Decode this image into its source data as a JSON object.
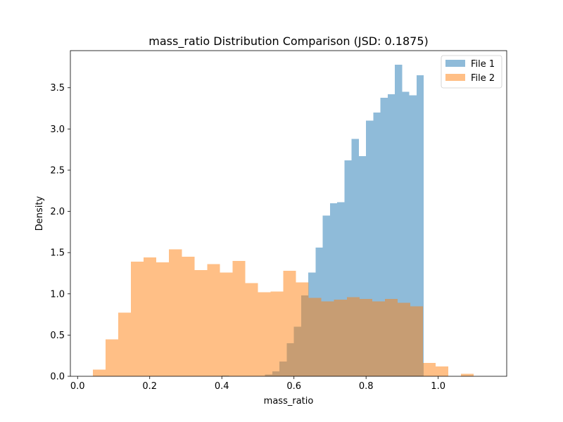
{
  "chart_data": {
    "type": "histogram",
    "title": "mass_ratio Distribution Comparison (JSD: 0.1875)",
    "xlabel": "mass_ratio",
    "ylabel": "Density",
    "xlim": [
      -0.02,
      1.19
    ],
    "ylim": [
      0,
      3.95
    ],
    "xticks": [
      "0.0",
      "0.2",
      "0.4",
      "0.6",
      "0.8",
      "1.0"
    ],
    "xtick_values": [
      0.0,
      0.2,
      0.4,
      0.6,
      0.8,
      1.0
    ],
    "yticks": [
      "0.0",
      "0.5",
      "1.0",
      "1.5",
      "2.0",
      "2.5",
      "3.0",
      "3.5"
    ],
    "ytick_values": [
      0.0,
      0.5,
      1.0,
      1.5,
      2.0,
      2.5,
      3.0,
      3.5
    ],
    "legend_position": "top-right",
    "series": [
      {
        "name": "File 1",
        "color": "#1f77b4",
        "alpha": 0.5,
        "bin_start": 0.4,
        "bin_width": 0.02,
        "values": [
          0.01,
          0.0,
          0.0,
          0.0,
          0.0,
          0.0,
          0.02,
          0.06,
          0.18,
          0.4,
          0.6,
          0.98,
          1.26,
          1.56,
          1.95,
          2.1,
          2.11,
          2.62,
          2.88,
          2.67,
          3.1,
          3.2,
          3.38,
          3.42,
          3.78,
          3.45,
          3.41,
          3.65
        ]
      },
      {
        "name": "File 2",
        "color": "#ff7f0e",
        "alpha": 0.5,
        "bin_start": 0.0425,
        "bin_width": 0.0352,
        "values": [
          0.08,
          0.45,
          0.77,
          1.39,
          1.44,
          1.38,
          1.54,
          1.45,
          1.29,
          1.36,
          1.26,
          1.4,
          1.13,
          1.02,
          1.03,
          1.28,
          1.14,
          0.95,
          0.91,
          0.93,
          0.96,
          0.94,
          0.91,
          0.94,
          0.89,
          0.85,
          0.16,
          0.12,
          0.0,
          0.03
        ]
      }
    ]
  }
}
